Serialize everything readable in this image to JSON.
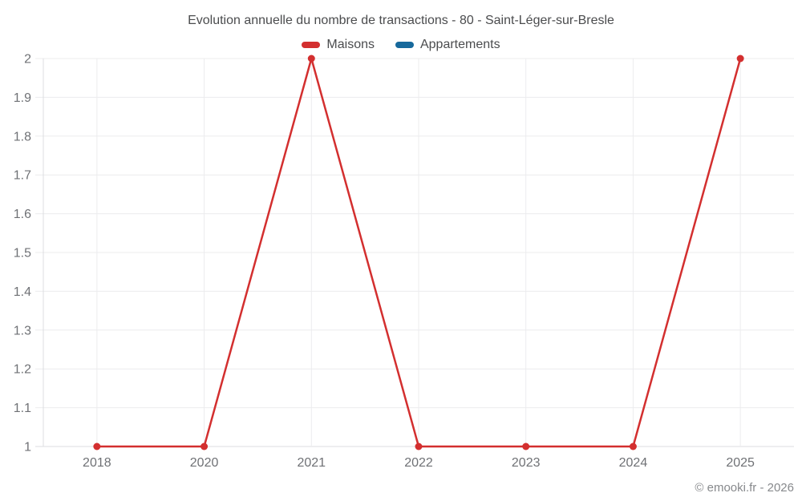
{
  "header": {
    "title": "Evolution annuelle du nombre de transactions - 80 - Saint-Léger-sur-Bresle"
  },
  "legend": {
    "items": [
      {
        "label": "Maisons",
        "color": "#d32f2f"
      },
      {
        "label": "Appartements",
        "color": "#17699c"
      }
    ]
  },
  "footer": {
    "credit": "© emooki.fr - 2026"
  },
  "chart_data": {
    "type": "line",
    "title": "Evolution annuelle du nombre de transactions - 80 - Saint-Léger-sur-Bresle",
    "categories": [
      "2018",
      "2020",
      "2021",
      "2022",
      "2023",
      "2024",
      "2025"
    ],
    "series": [
      {
        "name": "Maisons",
        "color": "#d32f2f",
        "values": [
          1,
          1,
          2,
          1,
          1,
          1,
          2
        ]
      },
      {
        "name": "Appartements",
        "color": "#17699c",
        "values": []
      }
    ],
    "ylim": [
      1,
      2
    ],
    "ytick_step": 0.1,
    "ytick_labels": [
      "1",
      "1.1",
      "1.2",
      "1.3",
      "1.4",
      "1.5",
      "1.6",
      "1.7",
      "1.8",
      "1.9",
      "2"
    ],
    "grid": true,
    "legend_position": "top",
    "xlabel": "",
    "ylabel": "",
    "point_radius": 4.5,
    "line_width": 2.5,
    "colors": {
      "grid": "#ececee",
      "axis": "#dcdde0",
      "tick_label": "#6f7175"
    }
  }
}
